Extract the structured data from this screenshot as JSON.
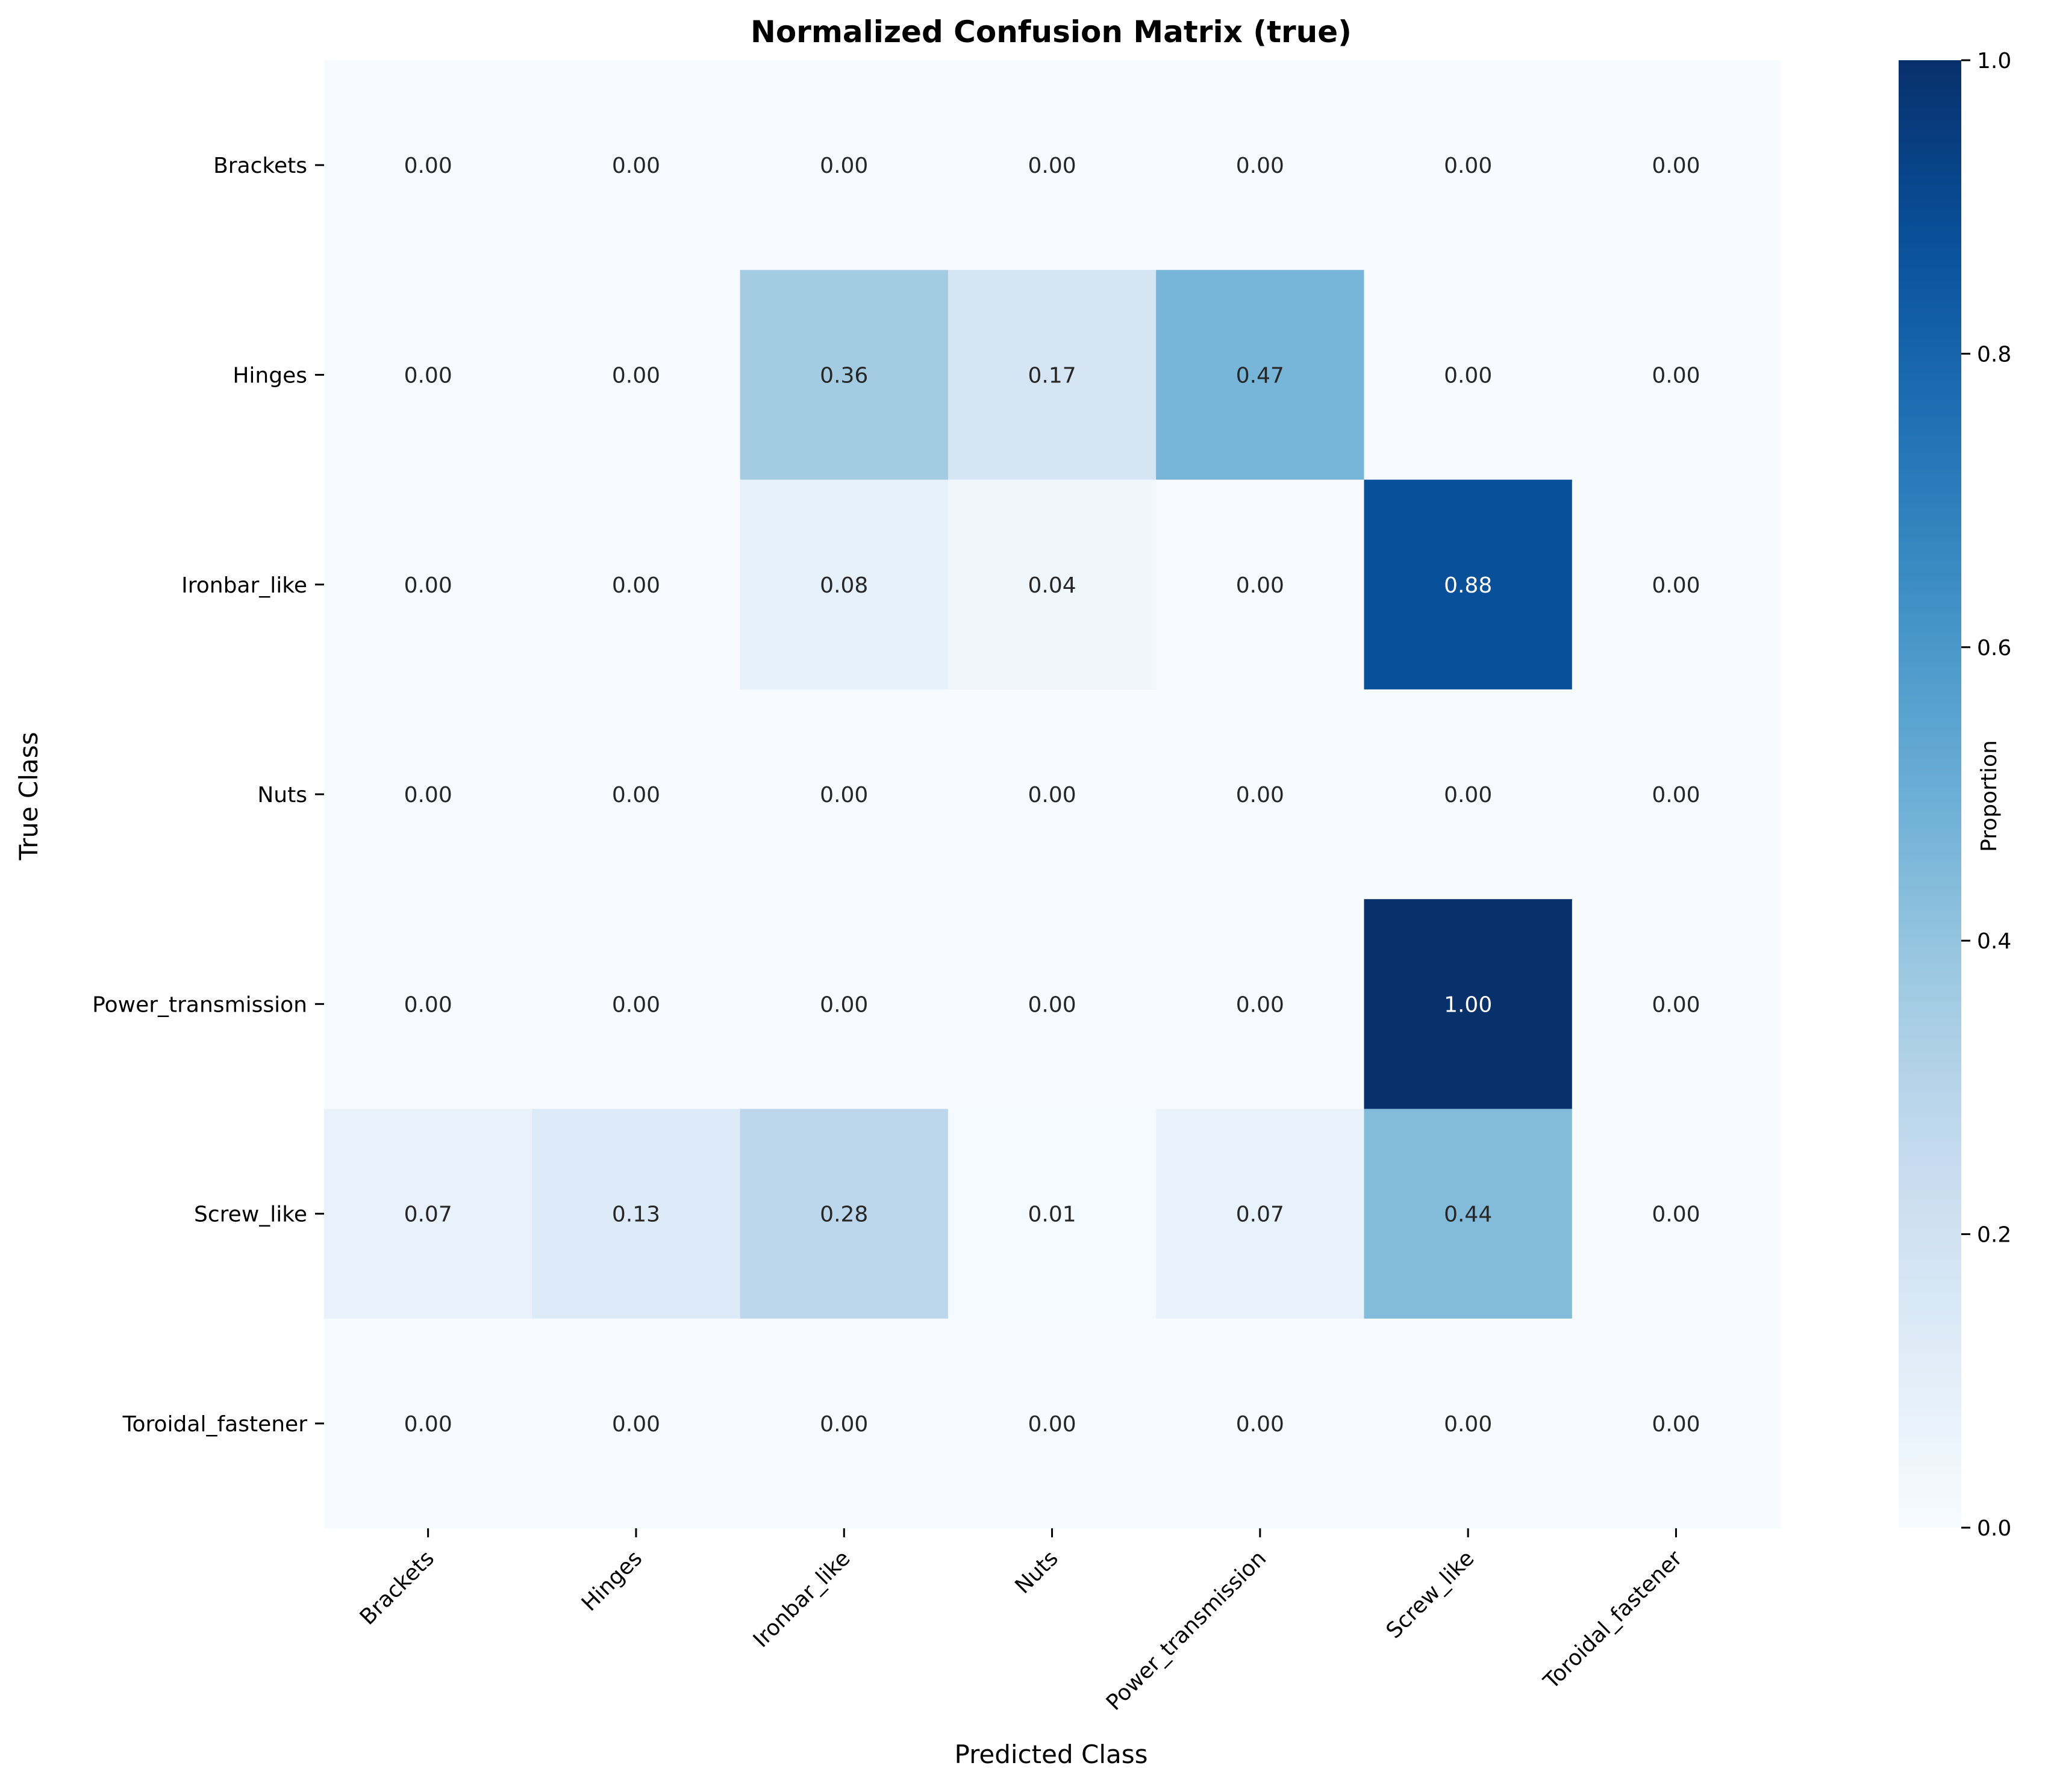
{
  "chart_data": {
    "type": "heatmap",
    "title": "Normalized Confusion Matrix (true)",
    "xlabel": "Predicted Class",
    "ylabel": "True Class",
    "x_categories": [
      "Brackets",
      "Hinges",
      "Ironbar_like",
      "Nuts",
      "Power_transmission",
      "Screw_like",
      "Toroidal_fastener"
    ],
    "y_categories": [
      "Brackets",
      "Hinges",
      "Ironbar_like",
      "Nuts",
      "Power_transmission",
      "Screw_like",
      "Toroidal_fastener"
    ],
    "values": [
      [
        0.0,
        0.0,
        0.0,
        0.0,
        0.0,
        0.0,
        0.0
      ],
      [
        0.0,
        0.0,
        0.36,
        0.17,
        0.47,
        0.0,
        0.0
      ],
      [
        0.0,
        0.0,
        0.08,
        0.04,
        0.0,
        0.88,
        0.0
      ],
      [
        0.0,
        0.0,
        0.0,
        0.0,
        0.0,
        0.0,
        0.0
      ],
      [
        0.0,
        0.0,
        0.0,
        0.0,
        0.0,
        1.0,
        0.0
      ],
      [
        0.07,
        0.13,
        0.28,
        0.01,
        0.07,
        0.44,
        0.0
      ],
      [
        0.0,
        0.0,
        0.0,
        0.0,
        0.0,
        0.0,
        0.0
      ]
    ],
    "value_format": "0.00",
    "colormap": "Blues",
    "colorbar": {
      "label": "Proportion",
      "range": [
        0,
        1
      ],
      "ticks": [
        "0.0",
        "0.2",
        "0.4",
        "0.6",
        "0.8",
        "1.0"
      ]
    },
    "grid": false,
    "legend": "colorbar-right"
  }
}
